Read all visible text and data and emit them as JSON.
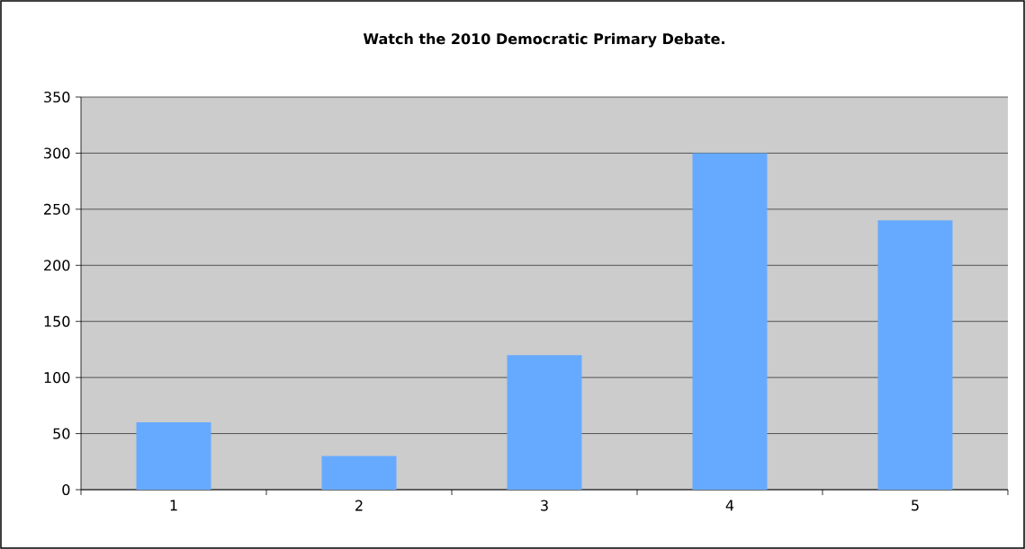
{
  "chart_data": {
    "type": "bar",
    "title": "**Watch the 2010 Democratic Primary Debate.**",
    "categories": [
      "1",
      "2",
      "3",
      "4",
      "5"
    ],
    "values": [
      60,
      30,
      120,
      300,
      240
    ],
    "color": "#66aaff",
    "ylim": [
      0,
      350
    ],
    "yticks": [
      0,
      50,
      100,
      150,
      200,
      250,
      300,
      350
    ],
    "grid": "y"
  }
}
